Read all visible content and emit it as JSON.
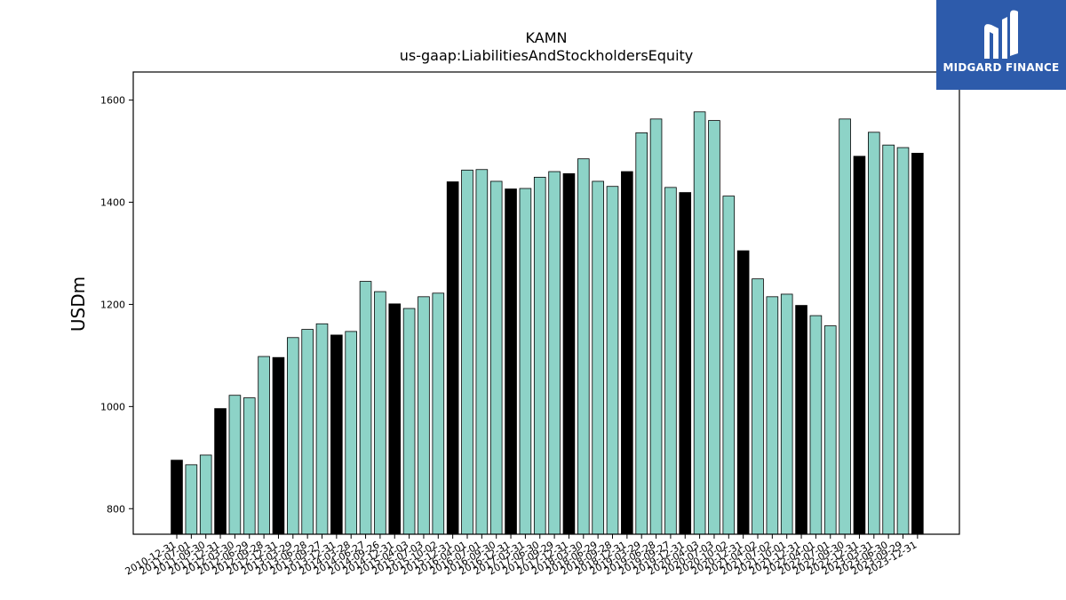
{
  "brand": {
    "name": "MIDGARD FINANCE"
  },
  "colors": {
    "annual": "#000000",
    "quarterly": "#8dd3c7",
    "logo_bg": "#2d5bab"
  },
  "chart_data": {
    "type": "bar",
    "title": "KAMN",
    "subtitle": "us-gaap:LiabilitiesAndStockholdersEquity",
    "xlabel": "",
    "ylabel": "USDm",
    "ylim": [
      750,
      1655
    ],
    "yticks": [
      800,
      1000,
      1200,
      1400,
      1600
    ],
    "grid": false,
    "categories": [
      "2010-12-31",
      "2011-07-01",
      "2011-09-30",
      "2011-12-31",
      "2012-03-30",
      "2012-06-29",
      "2012-09-28",
      "2012-12-31",
      "2013-03-29",
      "2013-06-28",
      "2013-09-27",
      "2013-12-31",
      "2014-03-28",
      "2014-06-27",
      "2014-09-26",
      "2014-12-31",
      "2015-04-03",
      "2015-07-03",
      "2015-10-02",
      "2015-12-31",
      "2016-04-01",
      "2016-07-01",
      "2016-09-30",
      "2016-12-31",
      "2017-03-31",
      "2017-06-30",
      "2017-09-29",
      "2017-12-31",
      "2018-03-30",
      "2018-06-29",
      "2018-09-28",
      "2018-12-31",
      "2019-03-29",
      "2019-06-28",
      "2019-09-27",
      "2019-12-31",
      "2020-04-03",
      "2020-07-03",
      "2020-10-02",
      "2020-12-31",
      "2021-04-02",
      "2021-07-02",
      "2021-10-01",
      "2021-12-31",
      "2022-04-01",
      "2022-07-01",
      "2022-09-30",
      "2022-12-31",
      "2023-03-31",
      "2023-06-30",
      "2023-09-29",
      "2023-12-31"
    ],
    "tick_labels": [
      "2010-12-31",
      "2011-07-01",
      "2011-09-30",
      "2011-12-31",
      "2012-03-30",
      "2012-06-29",
      "2012-09-28",
      "2012-12-31",
      "2013-03-29",
      "2013-06-28",
      "2013-09-27",
      "2013-12-31",
      "2014-03-28",
      "2014-06-27",
      "2014-09-26",
      "2014-12-31",
      "2015-04-03",
      "2015-07-03",
      "2015-10-02",
      "2015-12-31",
      "2016-04-01",
      "2016-07-01",
      "2016-09-30",
      "2016-12-31",
      "2017-03-31",
      "2017-06-30",
      "2017-09-29",
      "2017-12-31",
      "2018-03-30",
      "2018-06-29",
      "2018-09-28",
      "2018-12-31",
      "2019-03-29",
      "2019-06-28",
      "2019-09-27",
      "2019-12-31",
      "2020-04-03",
      "2020-07-03",
      "2020-10-02",
      "2020-12-31",
      "2021-04-02",
      "2021-07-02",
      "2021-10-01",
      "2021-12-31",
      "2022-04-01",
      "2022-07-01",
      "2022-09-30",
      "2022-12-31",
      "2023-03-31",
      "2023-06-30",
      "2023-09-29",
      "2023-12-31"
    ],
    "values": [
      895,
      886,
      905,
      996,
      1022,
      1017,
      1098,
      1096,
      1135,
      1151,
      1162,
      1140,
      1147,
      1245,
      1225,
      1201,
      1192,
      1215,
      1222,
      1440,
      1463,
      1464,
      1441,
      1426,
      1427,
      1449,
      1460,
      1456,
      1485,
      1441,
      1431,
      1460,
      1536,
      1563,
      1429,
      1419,
      1577,
      1560,
      1412,
      1305,
      1250,
      1215,
      1220,
      1198,
      1178,
      1158,
      1563,
      1490,
      1537,
      1512,
      1507,
      1496
    ],
    "annual_flags": [
      1,
      0,
      0,
      1,
      0,
      0,
      0,
      1,
      0,
      0,
      0,
      1,
      0,
      0,
      0,
      1,
      0,
      0,
      0,
      1,
      0,
      0,
      0,
      1,
      0,
      0,
      0,
      1,
      0,
      0,
      0,
      1,
      0,
      0,
      0,
      1,
      0,
      0,
      0,
      1,
      0,
      0,
      0,
      1,
      0,
      0,
      0,
      1,
      0,
      0,
      0,
      1
    ]
  }
}
